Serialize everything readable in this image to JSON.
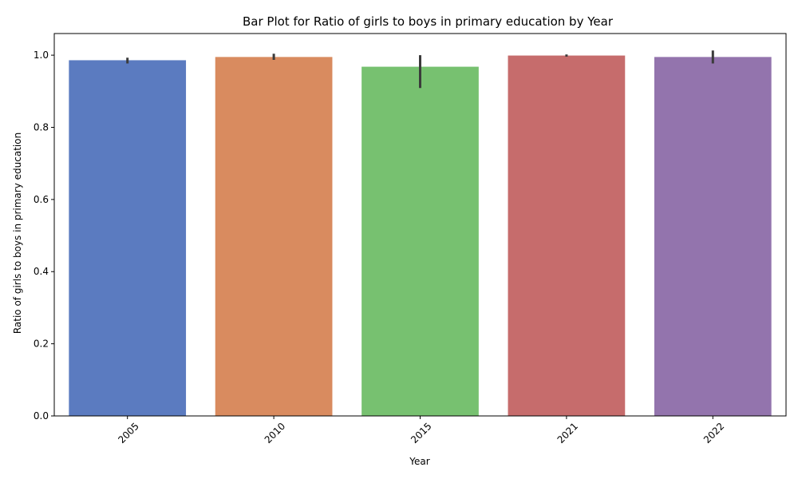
{
  "chart_data": {
    "type": "bar",
    "title": "Bar Plot for Ratio of girls to boys in primary education by Year",
    "xlabel": "Year",
    "ylabel": "Ratio of girls to boys in primary education",
    "categories": [
      "2005",
      "2010",
      "2015",
      "2021",
      "2022"
    ],
    "values": [
      0.986,
      0.995,
      0.968,
      0.999,
      0.995
    ],
    "error_bars": [
      {
        "low": 0.977,
        "high": 0.993
      },
      {
        "low": 0.987,
        "high": 1.004
      },
      {
        "low": 0.909,
        "high": 1.0
      },
      {
        "low": 0.996,
        "high": 1.002
      },
      {
        "low": 0.977,
        "high": 1.013
      }
    ],
    "colors": [
      "#5b7bc0",
      "#d98b5f",
      "#77c170",
      "#c66c6c",
      "#9374ad"
    ],
    "error_color": "#3b3b3b",
    "ylim": [
      0,
      1.06
    ],
    "yticks": [
      0.0,
      0.2,
      0.4,
      0.6,
      0.8,
      1.0
    ],
    "ytick_labels": [
      "0.0",
      "0.2",
      "0.4",
      "0.6",
      "0.8",
      "1.0"
    ],
    "grid": false,
    "xtick_rotation": 45
  }
}
